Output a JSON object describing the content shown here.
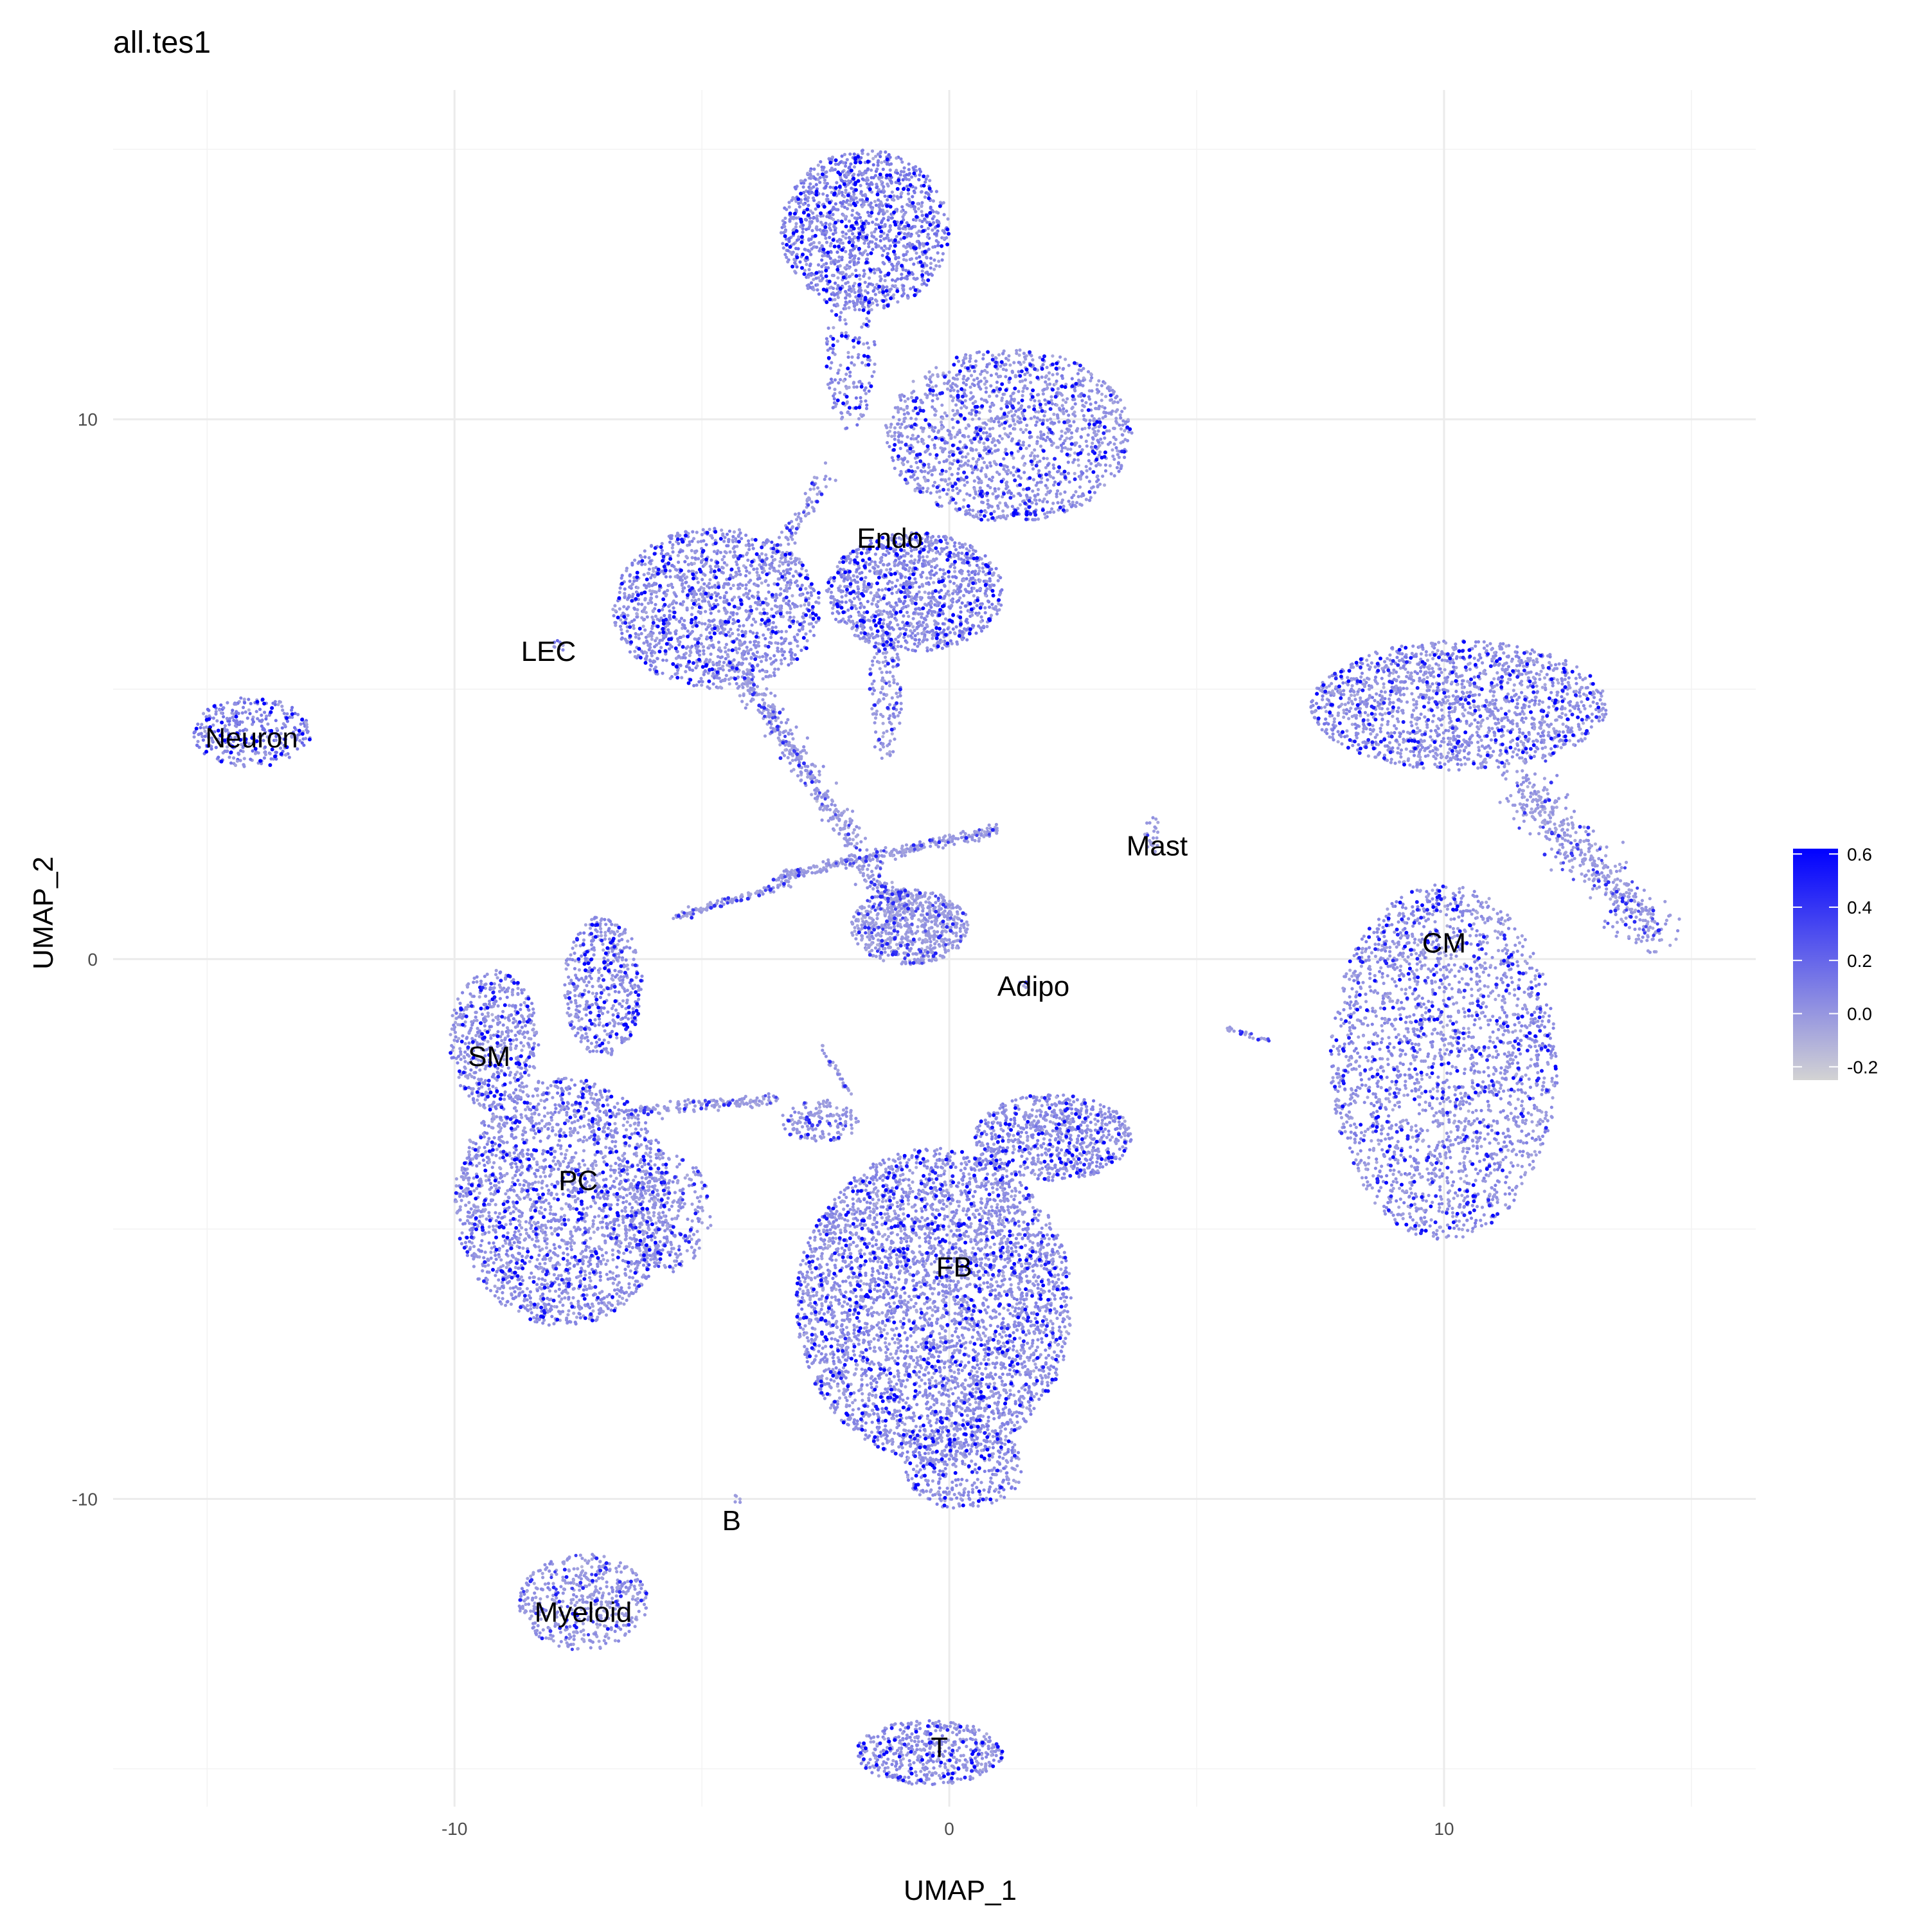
{
  "chart_data": {
    "type": "scatter",
    "title": "all.tes1",
    "xlabel": "UMAP_1",
    "ylabel": "UMAP_2",
    "xlim": [
      -16.9,
      16.3
    ],
    "ylim": [
      -15.7,
      16.1
    ],
    "x_ticks": [
      -10,
      0,
      10
    ],
    "x_tick_labels": [
      "-10",
      "0",
      "10"
    ],
    "y_ticks": [
      -10,
      0,
      10
    ],
    "y_tick_labels": [
      "-10",
      "0",
      "10"
    ],
    "grid": true,
    "legend": {
      "placement": "right",
      "title": "",
      "min": -0.25,
      "max": 0.62,
      "ticks": [
        -0.2,
        0.0,
        0.2,
        0.4,
        0.6
      ],
      "tick_labels": [
        "-0.2",
        "0.0",
        "0.2",
        "0.4",
        "0.6"
      ],
      "low_color": "#d3d3d3",
      "high_color": "#0000ff"
    },
    "clusters": [
      {
        "label": "Endo",
        "label_x": -1.2,
        "label_y": 7.8,
        "regions": [
          {
            "cx": -1.7,
            "cy": 13.5,
            "rx": 1.7,
            "ry": 1.5,
            "n": 1400,
            "high": 0.5
          },
          {
            "cx": -2.0,
            "cy": 11.2,
            "rx": 0.5,
            "ry": 1.4,
            "n": 180,
            "high": 0.4
          },
          {
            "cx": 1.2,
            "cy": 9.7,
            "rx": 2.5,
            "ry": 1.6,
            "n": 1600,
            "high": 0.3
          },
          {
            "cx": -4.7,
            "cy": 6.5,
            "rx": 2.1,
            "ry": 1.5,
            "n": 1500,
            "high": 0.35
          },
          {
            "cx": -0.7,
            "cy": 6.8,
            "rx": 1.8,
            "ry": 1.1,
            "n": 1200,
            "high": 0.42
          },
          {
            "cx": -1.3,
            "cy": 4.9,
            "rx": 0.35,
            "ry": 1.2,
            "n": 150,
            "high": 0.2
          },
          {
            "cx": -0.8,
            "cy": 0.6,
            "rx": 1.2,
            "ry": 0.7,
            "n": 700,
            "high": 0.15
          }
        ],
        "lines": [
          {
            "x1": -4.2,
            "y1": 5.3,
            "x2": -0.9,
            "y2": 0.7,
            "n": 500,
            "w": 0.25
          },
          {
            "x1": -3.5,
            "y1": 1.5,
            "x2": 1.0,
            "y2": 2.4,
            "n": 300,
            "w": 0.1
          },
          {
            "x1": -5.5,
            "y1": 0.8,
            "x2": -3.2,
            "y2": 1.4,
            "n": 120,
            "w": 0.08
          },
          {
            "x1": -2.5,
            "y1": 9.0,
            "x2": -3.5,
            "y2": 7.5,
            "n": 80,
            "w": 0.2
          }
        ]
      },
      {
        "label": "LEC",
        "label_x": -8.1,
        "label_y": 5.7,
        "regions": [
          {
            "cx": -7.9,
            "cy": 5.8,
            "rx": 0.15,
            "ry": 0.12,
            "n": 8,
            "high": 0.5
          }
        ],
        "lines": []
      },
      {
        "label": "Neuron",
        "label_x": -14.1,
        "label_y": 4.1,
        "regions": [
          {
            "cx": -14.1,
            "cy": 4.2,
            "rx": 1.2,
            "ry": 0.65,
            "n": 350,
            "high": 0.55
          }
        ],
        "lines": []
      },
      {
        "label": "Mast",
        "label_x": 4.2,
        "label_y": 2.1,
        "regions": [
          {
            "cx": 4.1,
            "cy": 2.3,
            "rx": 0.15,
            "ry": 0.4,
            "n": 25,
            "high": 0.1
          }
        ],
        "lines": []
      },
      {
        "label": "Adipo",
        "label_x": 1.7,
        "label_y": -0.5,
        "regions": [
          {
            "cx": 1.5,
            "cy": -0.5,
            "rx": 0.1,
            "ry": 0.1,
            "n": 6,
            "high": 0.1
          }
        ],
        "lines": []
      },
      {
        "label": "CM",
        "label_x": 10.0,
        "label_y": 0.3,
        "regions": [
          {
            "cx": 10.3,
            "cy": 4.7,
            "rx": 3.0,
            "ry": 1.2,
            "n": 1700,
            "high": 0.3
          },
          {
            "cx": 10.0,
            "cy": -1.9,
            "rx": 2.3,
            "ry": 3.3,
            "n": 2400,
            "high": 0.3
          }
        ],
        "lines": [
          {
            "x1": 11.5,
            "y1": 3.3,
            "x2": 14.3,
            "y2": 0.4,
            "n": 500,
            "w": 0.45
          },
          {
            "x1": 5.6,
            "y1": -1.3,
            "x2": 6.5,
            "y2": -1.5,
            "n": 30,
            "w": 0.05
          }
        ]
      },
      {
        "label": "SM",
        "label_x": -9.3,
        "label_y": -1.8,
        "regions": [
          {
            "cx": -9.2,
            "cy": -1.5,
            "rx": 0.9,
            "ry": 1.3,
            "n": 550,
            "high": 0.3
          }
        ],
        "lines": []
      },
      {
        "label": "PC",
        "label_x": -7.5,
        "label_y": -4.1,
        "regions": [
          {
            "cx": -7.8,
            "cy": -4.5,
            "rx": 2.2,
            "ry": 2.3,
            "n": 2300,
            "high": 0.32
          },
          {
            "cx": -7.0,
            "cy": -0.5,
            "rx": 0.8,
            "ry": 1.3,
            "n": 500,
            "high": 0.3
          },
          {
            "cx": -5.7,
            "cy": -4.7,
            "rx": 0.9,
            "ry": 1.1,
            "n": 300,
            "high": 0.2
          }
        ],
        "lines": [
          {
            "x1": -6.3,
            "y1": -2.8,
            "x2": -3.5,
            "y2": -2.6,
            "n": 150,
            "w": 0.12
          }
        ]
      },
      {
        "label": "FB",
        "label_x": 0.1,
        "label_y": -5.7,
        "regions": [
          {
            "cx": -0.3,
            "cy": -6.4,
            "rx": 2.8,
            "ry": 2.9,
            "n": 4200,
            "high": 0.33
          },
          {
            "cx": 0.3,
            "cy": -9.4,
            "rx": 1.2,
            "ry": 0.8,
            "n": 400,
            "high": 0.35
          },
          {
            "cx": 2.1,
            "cy": -3.3,
            "rx": 1.6,
            "ry": 0.8,
            "n": 800,
            "high": 0.35
          },
          {
            "cx": -2.6,
            "cy": -3.0,
            "rx": 0.8,
            "ry": 0.4,
            "n": 150,
            "high": 0.2
          }
        ],
        "lines": [
          {
            "x1": -2.6,
            "y1": -1.6,
            "x2": -2.0,
            "y2": -2.5,
            "n": 30,
            "w": 0.05
          }
        ]
      },
      {
        "label": "B",
        "label_x": -4.4,
        "label_y": -10.4,
        "regions": [
          {
            "cx": -4.3,
            "cy": -10.0,
            "rx": 0.08,
            "ry": 0.15,
            "n": 5,
            "high": 0.1
          }
        ],
        "lines": []
      },
      {
        "label": "Myeloid",
        "label_x": -7.4,
        "label_y": -12.1,
        "regions": [
          {
            "cx": -7.4,
            "cy": -11.9,
            "rx": 1.3,
            "ry": 0.9,
            "n": 500,
            "high": 0.2
          }
        ],
        "lines": []
      },
      {
        "label": "T",
        "label_x": -0.2,
        "label_y": -14.6,
        "regions": [
          {
            "cx": -0.4,
            "cy": -14.7,
            "rx": 1.5,
            "ry": 0.6,
            "n": 500,
            "high": 0.3
          }
        ],
        "lines": []
      }
    ]
  }
}
